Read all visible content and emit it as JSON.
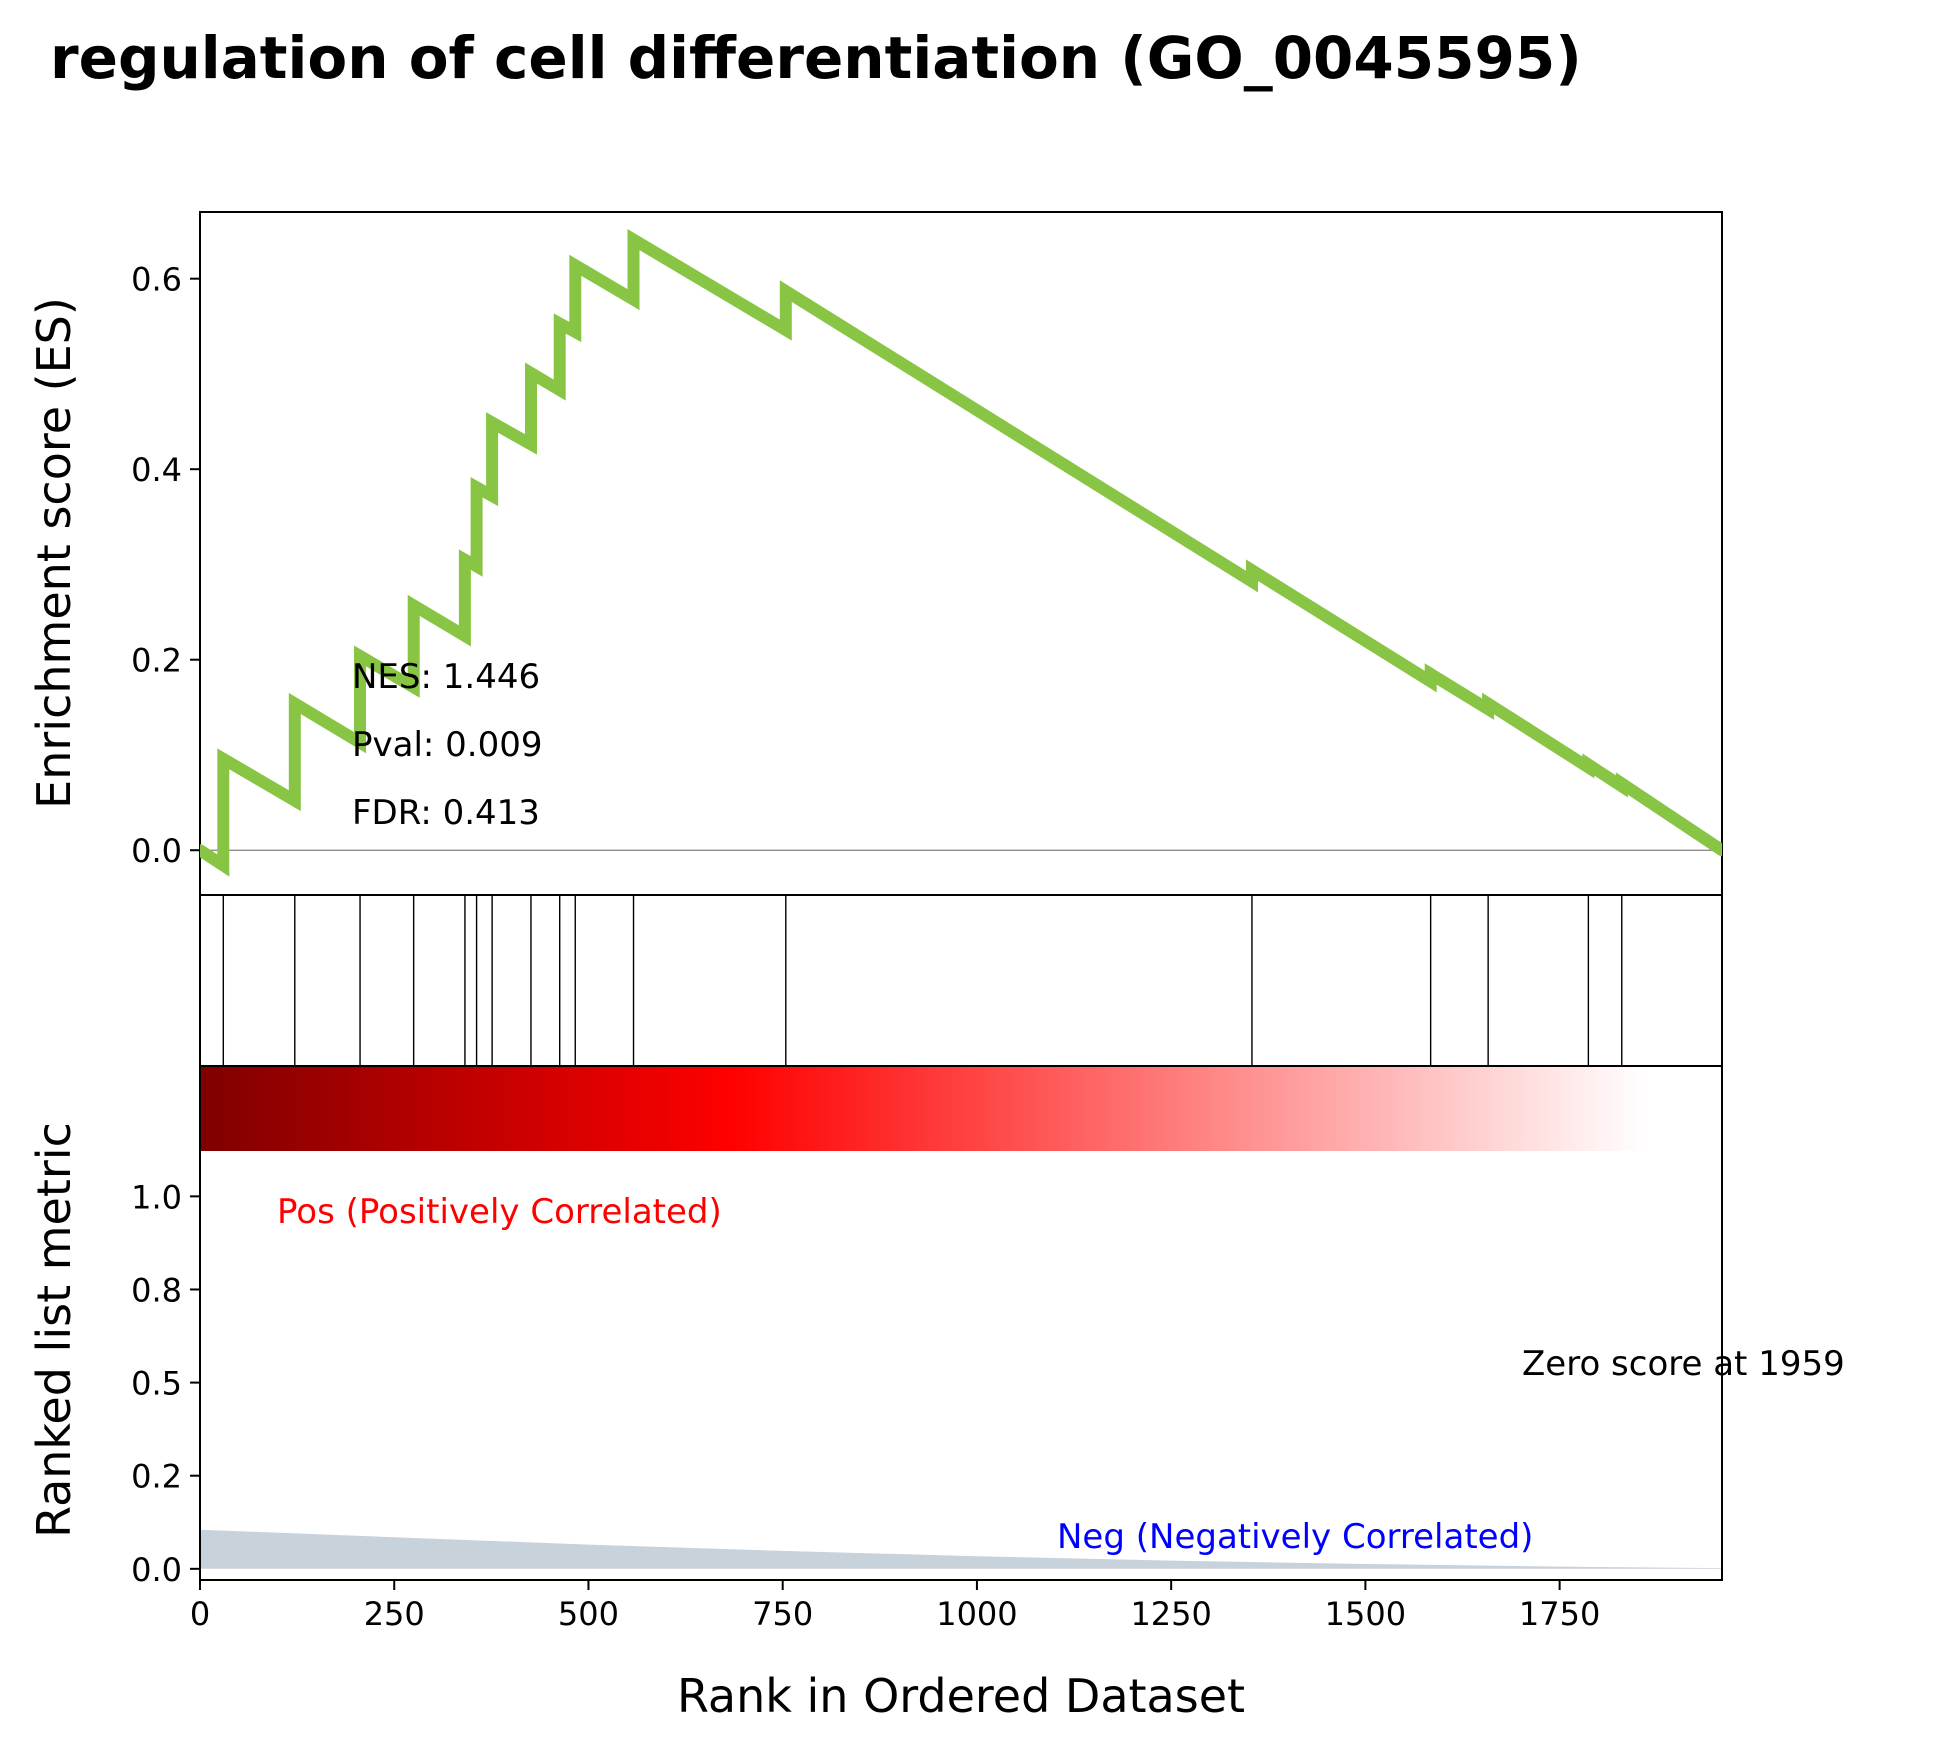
{
  "chart_data": {
    "type": "line",
    "title": "regulation of cell differentiation (GO_0045595)",
    "xlabel": "Rank in Ordered Dataset",
    "xlim": [
      0,
      1959
    ],
    "x_ticks": [
      0,
      250,
      500,
      750,
      1000,
      1250,
      1500,
      1750
    ],
    "x_tick_labels": [
      "0",
      "250",
      "500",
      "750",
      "1000",
      "1250",
      "1500",
      "1750"
    ],
    "es_panel": {
      "ylabel": "Enrichment score (ES)",
      "ylim": [
        -0.047,
        0.67
      ],
      "y_ticks": [
        0.0,
        0.2,
        0.4,
        0.6
      ],
      "y_tick_labels": [
        "0.0",
        "0.2",
        "0.4",
        "0.6"
      ],
      "line_color": "#88c544",
      "zero_line_color": "#808080",
      "series": [
        {
          "x": [
            0,
            30,
            30,
            122,
            122,
            206,
            206,
            275,
            275,
            341,
            341,
            356,
            356,
            376,
            376,
            426,
            426,
            463,
            463,
            483,
            483,
            558,
            558,
            754,
            754,
            1354,
            1354,
            1584,
            1584,
            1658,
            1658,
            1787,
            1787,
            1830,
            1830,
            1959
          ],
          "y": [
            0.0,
            -0.016,
            0.096,
            0.052,
            0.154,
            0.113,
            0.204,
            0.171,
            0.257,
            0.225,
            0.305,
            0.298,
            0.381,
            0.372,
            0.449,
            0.426,
            0.501,
            0.483,
            0.553,
            0.544,
            0.614,
            0.578,
            0.641,
            0.546,
            0.587,
            0.282,
            0.294,
            0.177,
            0.185,
            0.148,
            0.154,
            0.087,
            0.09,
            0.067,
            0.07,
            0.0
          ]
        }
      ],
      "annotations": [
        "NES: 1.446",
        "Pval: 0.009",
        "FDR: 0.413"
      ]
    },
    "hits_panel": {
      "hit_ranks": [
        30,
        122,
        206,
        275,
        341,
        356,
        376,
        426,
        463,
        483,
        558,
        754,
        1354,
        1584,
        1658,
        1787,
        1830
      ],
      "bar_color": "#000000"
    },
    "rank_panel": {
      "ylabel": "Ranked list metric",
      "ylim": [
        -0.03,
        1.35
      ],
      "y_ticks": [
        0.0,
        0.25,
        0.5,
        0.75,
        1.0
      ],
      "y_tick_labels": [
        "0.0",
        "0.2",
        "0.5",
        "0.8",
        "1.0"
      ],
      "heatmap_gradient": [
        "#7f0000",
        "#ff0000",
        "#ffffff"
      ],
      "fill_color": "#c8d2db",
      "metric_curve": {
        "x": [
          0,
          250,
          500,
          750,
          1000,
          1250,
          1500,
          1750,
          1959
        ],
        "y": [
          0.105,
          0.085,
          0.065,
          0.048,
          0.034,
          0.022,
          0.013,
          0.006,
          0.002
        ]
      },
      "pos_label": "Pos (Positively Correlated)",
      "pos_color": "#ff0000",
      "neg_label": "Neg (Negatively Correlated)",
      "neg_color": "#0000ff",
      "zero_score_label": "Zero score at 1959"
    }
  }
}
